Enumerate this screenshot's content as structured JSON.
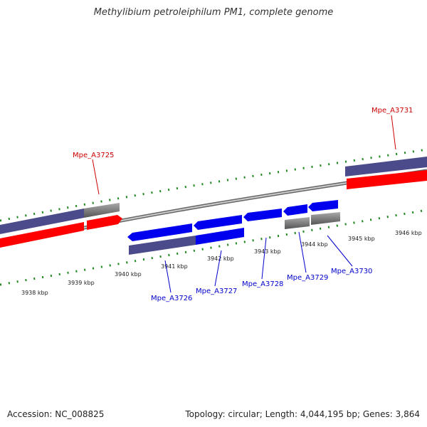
{
  "title": "Methylibium petroleiphilum PM1, complete genome",
  "accession": "Accession: NC_008825",
  "summary": "Topology: circular; Length: 4,044,195 bp; Genes: 3,864",
  "colors": {
    "forward_cds": "#ff0000",
    "reverse_cds": "#0000ff",
    "forward_label": "#cc0000",
    "reverse_label": "#0000cc",
    "backbone": "#888888",
    "tick": "#228822",
    "grey_feature": "#666666",
    "purple_feature": "#4b4b8c"
  },
  "tick_labels": [
    "3938 kbp",
    "3939 kbp",
    "3940 kbp",
    "3941 kbp",
    "3942 kbp",
    "3943 kbp",
    "3944 kbp",
    "3945 kbp",
    "3946 kbp"
  ],
  "forward_gene_labels": [
    "Mpe_A3725",
    "Mpe_A3731"
  ],
  "reverse_gene_labels": [
    "Mpe_A3726",
    "Mpe_A3727",
    "Mpe_A3728",
    "Mpe_A3729",
    "Mpe_A3730"
  ]
}
